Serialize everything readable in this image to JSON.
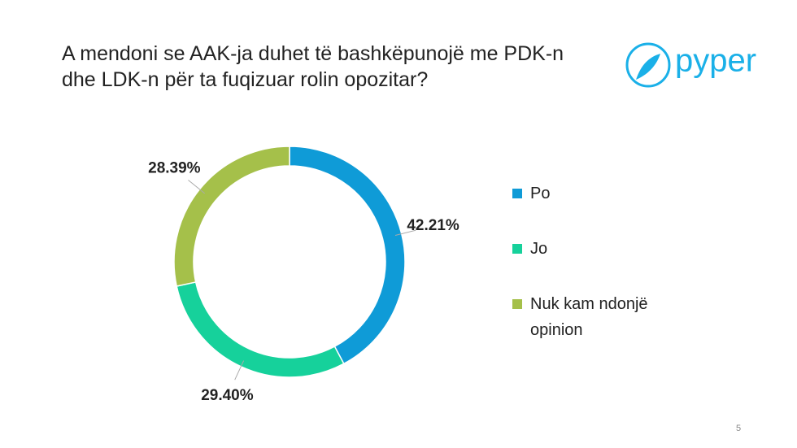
{
  "chart_data": {
    "type": "donut",
    "title": "A mendoni se AAK-ja duhet të bashkëpunojë me PDK-n dhe LDK-n për ta fuqizuar rolin opozitar?",
    "categories": [
      "Po",
      "Jo",
      "Nuk kam ndonjë opinion"
    ],
    "values": [
      42.21,
      29.4,
      28.39
    ],
    "value_labels": [
      "42.21%",
      "29.40%",
      "28.39%"
    ],
    "colors": [
      "#0f9bd7",
      "#16d19b",
      "#a5c04a"
    ],
    "legend": "right"
  },
  "logo": "pyper",
  "page_number": "5"
}
